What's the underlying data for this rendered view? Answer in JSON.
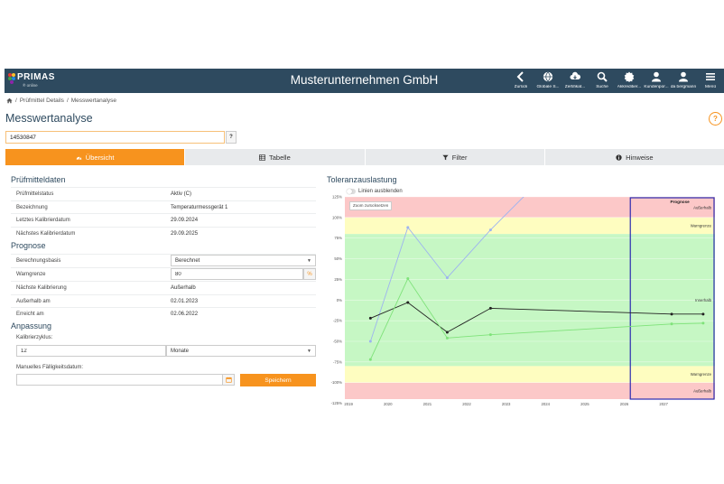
{
  "header": {
    "logo_text": "PRIMAS",
    "logo_sub": "® online",
    "company": "Musterunternehmen GmbH",
    "nav": [
      {
        "icon": "chevron-left-icon",
        "label": "Zurück"
      },
      {
        "icon": "globe-icon",
        "label": "Globale S..."
      },
      {
        "icon": "cloud-download-icon",
        "label": "Zertifikat..."
      },
      {
        "icon": "search-icon",
        "label": "Suche"
      },
      {
        "icon": "certificate-icon",
        "label": "Akkreditier..."
      },
      {
        "icon": "user-icon",
        "label": "Kundenpor..."
      },
      {
        "icon": "user-icon",
        "label": "da bergmann"
      },
      {
        "icon": "menu-icon",
        "label": "Menü"
      }
    ]
  },
  "breadcrumb": [
    "Prüfmittel Details",
    "Messwertanalyse"
  ],
  "page": {
    "title": "Messwertanalyse",
    "help": "?",
    "id_value": "14530847",
    "id_button": "?"
  },
  "tabs": [
    {
      "label": "Übersicht",
      "icon": "dashboard-icon"
    },
    {
      "label": "Tabelle",
      "icon": "table-icon"
    },
    {
      "label": "Filter",
      "icon": "filter-icon"
    },
    {
      "label": "Hinweise",
      "icon": "info-icon"
    }
  ],
  "pruefmitteldaten": {
    "title": "Prüfmitteldaten",
    "rows": [
      {
        "k": "Prüfmittelstatus",
        "v": "Aktiv (C)"
      },
      {
        "k": "Bezeichnung",
        "v": "Temperaturmessgerät 1"
      },
      {
        "k": "Letztes Kalibrierdatum",
        "v": "29.09.2024"
      },
      {
        "k": "Nächstes Kalibrierdatum",
        "v": "29.09.2025"
      }
    ]
  },
  "prognose": {
    "title": "Prognose",
    "berechnungsbasis_label": "Berechnungsbasis",
    "berechnungsbasis_value": "Berechnet",
    "warngrenze_label": "Warngrenze",
    "warngrenze_value": "80",
    "warngrenze_unit": "%",
    "rows": [
      {
        "k": "Nächste Kalibrierung",
        "v": "Außerhalb"
      },
      {
        "k": "Außerhalb am",
        "v": "02.01.2023"
      },
      {
        "k": "Erreicht am",
        "v": "02.06.2022"
      }
    ]
  },
  "anpassung": {
    "title": "Anpassung",
    "zyklus_label": "Kalibrierzyklus:",
    "zyklus_value": "12",
    "zyklus_unit": "Monate",
    "faellig_label": "Manuelles Fälligkeitsdatum:",
    "faellig_value": "",
    "save": "Speichern"
  },
  "chart": {
    "title": "Toleranzauslastung",
    "toggle_label": "Linien ausblenden",
    "zoom_reset": "Zoom zurücksetzen",
    "prognose_label": "Prognose",
    "zone_labels": {
      "top_out": "Außerhalb",
      "top_warn": "Warngrenze",
      "inside": "Innerhalb",
      "bottom_warn": "Warngrenze",
      "bottom_out": "Außerhalb"
    },
    "colors": {
      "out": "#fcc8c8",
      "warn": "#fefdc0",
      "inside": "#c6f7c4",
      "prognose_border": "#2b2bb0",
      "series_blue": "#9db3f0",
      "series_black": "#222222",
      "series_green": "#7fe27a"
    }
  },
  "chart_data": {
    "type": "line",
    "title": "Toleranzauslastung",
    "ylim": [
      -120,
      125
    ],
    "xlim": [
      2018,
      2027.4
    ],
    "yticks": [
      "125%",
      "100%",
      "75%",
      "50%",
      "25%",
      "0%",
      "-25%",
      "-50%",
      "-75%",
      "-100%",
      "-125%"
    ],
    "ytick_values": [
      125,
      100,
      75,
      50,
      25,
      0,
      -25,
      -50,
      -75,
      -100,
      -125
    ],
    "xticks": [
      "2019",
      "2020",
      "2021",
      "2022",
      "2023",
      "2024",
      "2025",
      "2026",
      "2027"
    ],
    "xtick_values": [
      2018.05,
      2019.05,
      2020.05,
      2021.05,
      2022.05,
      2023.05,
      2024.05,
      2025.05,
      2026.05
    ],
    "zones": [
      {
        "from": 100,
        "to": 125,
        "kind": "out"
      },
      {
        "from": 80,
        "to": 100,
        "kind": "warn"
      },
      {
        "from": -80,
        "to": 80,
        "kind": "inside"
      },
      {
        "from": -100,
        "to": -80,
        "kind": "warn"
      },
      {
        "from": -120,
        "to": -100,
        "kind": "out"
      }
    ],
    "prognose_range": [
      2025.25,
      2027.4
    ],
    "series": [
      {
        "color_key": "series_blue",
        "points": [
          [
            2018.65,
            -50
          ],
          [
            2019.6,
            88
          ],
          [
            2020.6,
            27
          ],
          [
            2021.7,
            85
          ],
          [
            2022.6,
            128
          ]
        ]
      },
      {
        "color_key": "series_black",
        "points": [
          [
            2018.65,
            -22
          ],
          [
            2019.6,
            -3
          ],
          [
            2020.6,
            -39
          ],
          [
            2021.7,
            -10
          ],
          [
            2026.3,
            -17
          ],
          [
            2027.1,
            -17
          ]
        ]
      },
      {
        "color_key": "series_green",
        "points": [
          [
            2018.65,
            -72
          ],
          [
            2019.6,
            26
          ],
          [
            2020.6,
            -46
          ],
          [
            2021.7,
            -42
          ],
          [
            2026.3,
            -29
          ],
          [
            2027.1,
            -28
          ]
        ]
      }
    ]
  }
}
